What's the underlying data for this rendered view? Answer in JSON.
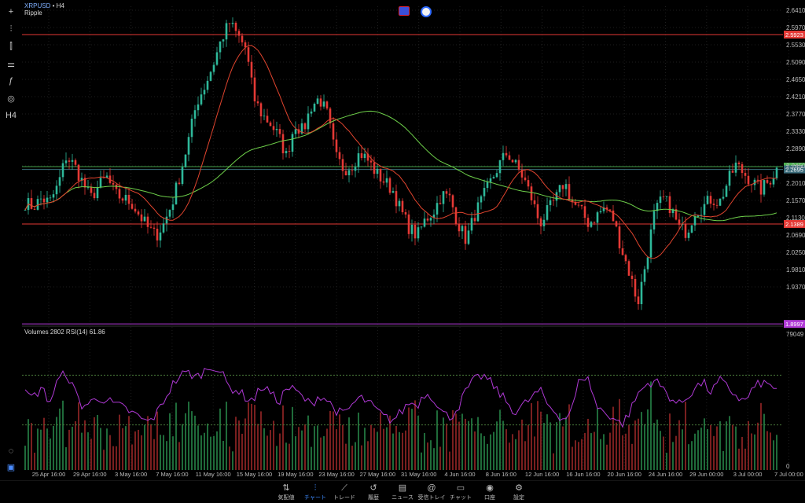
{
  "header": {
    "symbol": "XRPUSD",
    "timeframe": "H4",
    "separator": " • ",
    "description": "Ripple"
  },
  "toolbar": {
    "items": [
      {
        "name": "crosshair-icon",
        "glyph": "+"
      },
      {
        "name": "candle-type-icon",
        "glyph": "⫶"
      },
      {
        "name": "indicators-icon",
        "glyph": "⫿"
      },
      {
        "name": "objects-icon",
        "glyph": "⚌"
      },
      {
        "name": "function-icon",
        "glyph": "ƒ"
      },
      {
        "name": "shapes-icon",
        "glyph": "◎"
      },
      {
        "name": "timeframe-label",
        "glyph": "H4"
      }
    ]
  },
  "price_axis": {
    "ticks": [
      "2.6410",
      "2.5970",
      "2.5530",
      "2.5090",
      "2.4650",
      "2.4210",
      "2.3770",
      "2.3330",
      "2.2890",
      "2.2450",
      "2.2010",
      "2.1570",
      "2.1130",
      "2.0690",
      "2.0250",
      "1.9810",
      "1.9370"
    ],
    "levels": [
      {
        "label": "2.5923",
        "value": 2.5923,
        "color": "#e53935",
        "line": "#e53935"
      },
      {
        "label": "2.2763",
        "value": 2.2763,
        "color": "#4caf50",
        "line": "#43a047"
      },
      {
        "label": "2.2695",
        "value": 2.2695,
        "color": "#3a6b7a",
        "line": "#3a6b7a"
      },
      {
        "label": "2.1389",
        "value": 2.1389,
        "color": "#e53935",
        "line": "#e53935"
      },
      {
        "label": "1.8997",
        "value": 1.8997,
        "color": "#b039d6",
        "line": "#b039d6"
      }
    ]
  },
  "subwindow": {
    "title": "Volumes 2802 RSI(14) 61.86",
    "axis_top": "79049",
    "axis_bottom": "0"
  },
  "time_axis": {
    "labels": [
      "25 Apr 16:00",
      "29 Apr 16:00",
      "3 May 16:00",
      "7 May 16:00",
      "11 May 16:00",
      "15 May 16:00",
      "19 May 16:00",
      "23 May 16:00",
      "27 May 16:00",
      "31 May 16:00",
      "4 Jun 16:00",
      "8 Jun 16:00",
      "12 Jun 16:00",
      "16 Jun 16:00",
      "20 Jun 16:00",
      "24 Jun 16:00",
      "29 Jun 00:00",
      "3 Jul 00:00",
      "7 Jul 00:00"
    ]
  },
  "bottom_nav": [
    {
      "label": "気配値",
      "icon": "quotes-icon",
      "glyph": "⇅",
      "active": false
    },
    {
      "label": "チャート",
      "icon": "chart-icon",
      "glyph": "⫶",
      "active": true
    },
    {
      "label": "トレード",
      "icon": "trade-icon",
      "glyph": "⟋",
      "active": false
    },
    {
      "label": "履歴",
      "icon": "history-icon",
      "glyph": "↺",
      "active": false
    },
    {
      "label": "ニュース",
      "icon": "news-icon",
      "glyph": "▤",
      "active": false
    },
    {
      "label": "受信トレイ",
      "icon": "inbox-icon",
      "glyph": "@",
      "active": false
    },
    {
      "label": "チャット",
      "icon": "chat-icon",
      "glyph": "▭",
      "active": false
    },
    {
      "label": "口座",
      "icon": "account-icon",
      "glyph": "◉",
      "active": false
    },
    {
      "label": "設定",
      "icon": "settings-icon",
      "glyph": "⚙",
      "active": false
    }
  ],
  "chart_data": {
    "type": "candlestick",
    "price_range": [
      1.9,
      2.66
    ],
    "colors": {
      "up": "#2eb89a",
      "down": "#e53935",
      "ma_fast": "#e0442e",
      "ma_slow": "#6ed04a",
      "rsi": "#b039d6",
      "grid": "#1e1e1e"
    },
    "close_path": [
      2.19,
      2.18,
      2.2,
      2.19,
      2.23,
      2.3,
      2.28,
      2.24,
      2.2,
      2.23,
      2.25,
      2.21,
      2.2,
      2.19,
      2.16,
      2.13,
      2.11,
      2.14,
      2.19,
      2.26,
      2.34,
      2.43,
      2.47,
      2.52,
      2.58,
      2.62,
      2.59,
      2.56,
      2.44,
      2.4,
      2.38,
      2.35,
      2.3,
      2.38,
      2.36,
      2.42,
      2.44,
      2.4,
      2.3,
      2.27,
      2.28,
      2.31,
      2.29,
      2.26,
      2.24,
      2.22,
      2.17,
      2.13,
      2.11,
      2.15,
      2.17,
      2.21,
      2.2,
      2.14,
      2.1,
      2.16,
      2.2,
      2.24,
      2.28,
      2.31,
      2.28,
      2.25,
      2.2,
      2.14,
      2.17,
      2.2,
      2.24,
      2.19,
      2.17,
      2.14,
      2.16,
      2.18,
      2.15,
      2.08,
      2.02,
      1.95,
      2.05,
      2.16,
      2.2,
      2.18,
      2.13,
      2.12,
      2.17,
      2.18,
      2.2,
      2.19,
      2.24,
      2.28,
      2.26,
      2.24,
      2.22,
      2.24,
      2.27
    ],
    "rsi_path": [
      55,
      52,
      60,
      48,
      66,
      72,
      58,
      45,
      48,
      52,
      50,
      46,
      44,
      40,
      36,
      32,
      38,
      50,
      62,
      70,
      72,
      68,
      74,
      78,
      72,
      60,
      58,
      52,
      50,
      62,
      56,
      48,
      60,
      58,
      52,
      46,
      54,
      50,
      42,
      38,
      46,
      52,
      48,
      42,
      36,
      34,
      40,
      48,
      46,
      56,
      52,
      40,
      36,
      44,
      58,
      66,
      70,
      64,
      56,
      48,
      40,
      46,
      52,
      58,
      46,
      40,
      34,
      44,
      70,
      66,
      44,
      40,
      36,
      30,
      40,
      55,
      62,
      66,
      60,
      52,
      46,
      52,
      60,
      64,
      56,
      66,
      60,
      54,
      48,
      58,
      64,
      62,
      60
    ],
    "rsi_levels": [
      70,
      30
    ]
  }
}
